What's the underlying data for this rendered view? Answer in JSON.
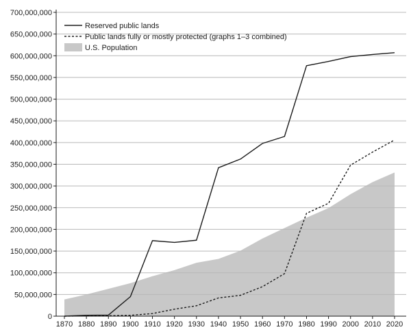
{
  "chart_data": {
    "type": "line",
    "x": [
      1870,
      1880,
      1890,
      1900,
      1910,
      1920,
      1930,
      1940,
      1950,
      1960,
      1970,
      1980,
      1990,
      2000,
      2010,
      2020
    ],
    "xticks": [
      "1870",
      "1880",
      "1890",
      "1900",
      "1910",
      "1920",
      "1930",
      "1940",
      "1950",
      "1960",
      "1970",
      "1980",
      "1990",
      "2000",
      "2010",
      "2020"
    ],
    "yticks": [
      "0",
      "50,000,000",
      "100,000,000",
      "150,000,000",
      "200,000,000",
      "250,000,000",
      "300,000,000",
      "350,000,000",
      "400,000,000",
      "450,000,000",
      "500,000,000",
      "550,000,000",
      "600,000,000",
      "650,000,000",
      "700,000,000"
    ],
    "ylim": [
      0,
      700000000
    ],
    "xlim": [
      1870,
      2020
    ],
    "grid": "horizontal",
    "legend_position": "top-left",
    "series": [
      {
        "name": "Reserved public lands",
        "style": "solid",
        "color": "#1a1a1a",
        "values": [
          0,
          2000000,
          2500000,
          45000000,
          174000000,
          170000000,
          175000000,
          342000000,
          362000000,
          398000000,
          414000000,
          577000000,
          587000000,
          598000000,
          603000000,
          607000000
        ]
      },
      {
        "name": "Public lands fully or mostly protected (graphs 1–3 combined)",
        "style": "dotted",
        "color": "#1a1a1a",
        "values": [
          0,
          500000,
          1000000,
          2000000,
          6000000,
          16000000,
          24000000,
          42000000,
          48000000,
          68000000,
          98000000,
          237000000,
          260000000,
          348000000,
          378000000,
          406000000
        ]
      },
      {
        "name": "U.S. Population",
        "style": "area",
        "color": "#c8c8c8",
        "values": [
          38500000,
          50000000,
          63000000,
          76000000,
          92000000,
          106000000,
          123000000,
          132000000,
          151000000,
          179000000,
          203000000,
          227000000,
          249000000,
          281000000,
          309000000,
          331000000
        ]
      }
    ]
  }
}
